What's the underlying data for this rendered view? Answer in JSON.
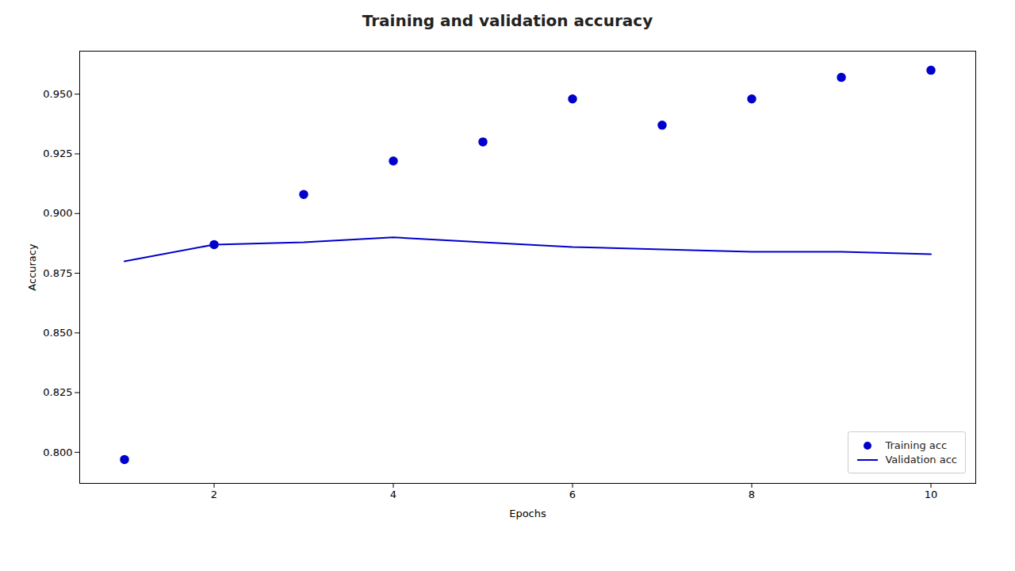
{
  "chart_data": {
    "type": "line",
    "title": "Training and validation accuracy",
    "xlabel": "Epochs",
    "ylabel": "Accuracy",
    "x": [
      1,
      2,
      3,
      4,
      5,
      6,
      7,
      8,
      9,
      10
    ],
    "series": [
      {
        "name": "Training acc",
        "type": "scatter",
        "marker": "circle",
        "color": "#0000cc",
        "values": [
          0.797,
          0.887,
          0.908,
          0.922,
          0.93,
          0.948,
          0.937,
          0.948,
          0.957,
          0.96
        ]
      },
      {
        "name": "Validation acc",
        "type": "line",
        "line_style": "solid",
        "color": "#0000cc",
        "values": [
          0.88,
          0.887,
          0.888,
          0.89,
          0.888,
          0.886,
          0.885,
          0.884,
          0.884,
          0.883
        ]
      }
    ],
    "xlim": [
      0.5,
      10.5
    ],
    "xticks": [
      2,
      4,
      6,
      8,
      10
    ],
    "ylim": [
      0.787,
      0.968
    ],
    "yticks": [
      {
        "value": 0.8,
        "label": "0.800"
      },
      0.825,
      {
        "value": 0.85,
        "label": "0.850"
      },
      0.875,
      {
        "value": 0.9,
        "label": "0.900"
      },
      0.925,
      {
        "value": 0.95,
        "label": "0.950"
      }
    ],
    "grid": false,
    "legend": "lower right"
  }
}
